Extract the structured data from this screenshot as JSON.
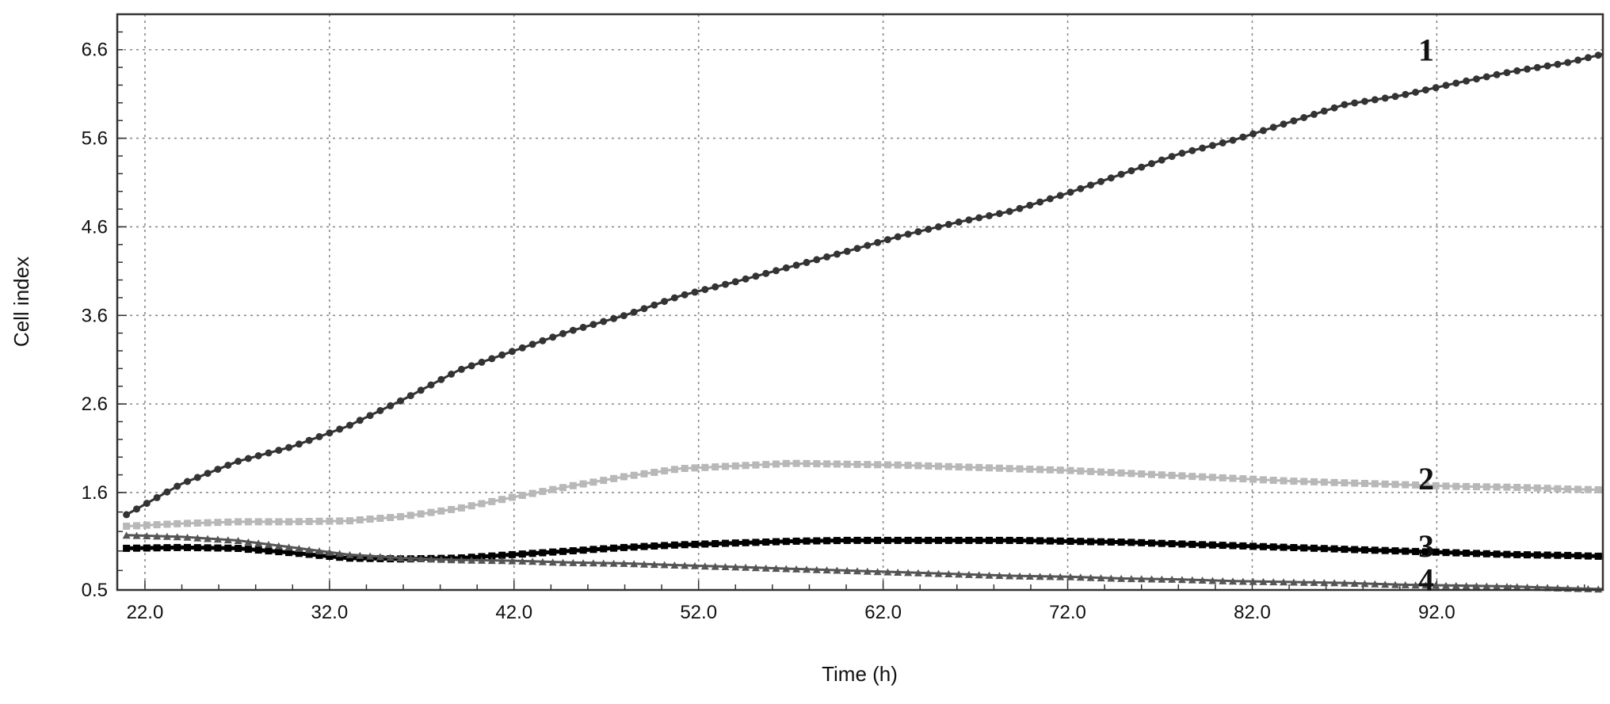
{
  "chart_data": {
    "type": "line",
    "title": "",
    "xlabel": "Time (h)",
    "ylabel": "Cell index",
    "xlim": [
      20.5,
      101.0
    ],
    "ylim": [
      0.5,
      7.0
    ],
    "xticks": [
      22.0,
      32.0,
      42.0,
      52.0,
      62.0,
      72.0,
      82.0,
      92.0
    ],
    "xtick_labels": [
      "22.0",
      "32.0",
      "42.0",
      "52.0",
      "62.0",
      "72.0",
      "82.0",
      "92.0"
    ],
    "yticks": [
      0.5,
      1.6,
      2.6,
      3.6,
      4.6,
      5.6,
      6.6
    ],
    "ytick_labels": [
      "0.5",
      "1.6",
      "2.6",
      "3.6",
      "4.6",
      "5.6",
      "6.6"
    ],
    "grid": true,
    "legend": "none",
    "series": [
      {
        "label": "1",
        "color": "#333333",
        "marker": "circle",
        "x": [
          21,
          24,
          27,
          30,
          33,
          36,
          39,
          42,
          45,
          48,
          51,
          54,
          57,
          60,
          63,
          66,
          69,
          72,
          75,
          78,
          81,
          84,
          87,
          90,
          93,
          96,
          99,
          101
        ],
        "y": [
          1.35,
          1.7,
          1.95,
          2.12,
          2.35,
          2.65,
          2.98,
          3.2,
          3.42,
          3.6,
          3.82,
          3.98,
          4.15,
          4.32,
          4.5,
          4.65,
          4.78,
          4.98,
          5.2,
          5.42,
          5.58,
          5.78,
          5.98,
          6.08,
          6.22,
          6.35,
          6.45,
          6.55
        ]
      },
      {
        "label": "2",
        "color": "#b8b8b8",
        "marker": "square",
        "x": [
          21,
          24,
          27,
          30,
          33,
          36,
          39,
          42,
          45,
          48,
          51,
          54,
          57,
          60,
          63,
          66,
          69,
          72,
          75,
          78,
          81,
          84,
          87,
          90,
          93,
          96,
          99,
          101
        ],
        "y": [
          1.22,
          1.25,
          1.27,
          1.27,
          1.28,
          1.33,
          1.42,
          1.55,
          1.67,
          1.78,
          1.87,
          1.9,
          1.93,
          1.92,
          1.91,
          1.89,
          1.87,
          1.85,
          1.82,
          1.79,
          1.76,
          1.73,
          1.71,
          1.69,
          1.67,
          1.66,
          1.64,
          1.63
        ]
      },
      {
        "label": "3",
        "color": "#000000",
        "marker": "square",
        "x": [
          21,
          24,
          27,
          30,
          33,
          36,
          39,
          42,
          45,
          48,
          51,
          54,
          57,
          60,
          63,
          66,
          69,
          72,
          75,
          78,
          81,
          84,
          87,
          90,
          93,
          96,
          99,
          101
        ],
        "y": [
          0.97,
          0.98,
          0.97,
          0.92,
          0.86,
          0.85,
          0.86,
          0.9,
          0.94,
          0.98,
          1.01,
          1.03,
          1.05,
          1.06,
          1.06,
          1.06,
          1.06,
          1.05,
          1.04,
          1.02,
          1.0,
          0.98,
          0.96,
          0.94,
          0.92,
          0.9,
          0.89,
          0.88
        ]
      },
      {
        "label": "4",
        "color": "#555555",
        "marker": "triangle",
        "x": [
          21,
          24,
          27,
          30,
          33,
          36,
          39,
          42,
          45,
          48,
          51,
          54,
          57,
          60,
          63,
          66,
          69,
          72,
          75,
          78,
          81,
          84,
          87,
          90,
          93,
          96,
          99,
          101
        ],
        "y": [
          1.12,
          1.1,
          1.06,
          0.98,
          0.9,
          0.86,
          0.84,
          0.83,
          0.81,
          0.8,
          0.78,
          0.76,
          0.74,
          0.72,
          0.7,
          0.68,
          0.66,
          0.65,
          0.63,
          0.62,
          0.6,
          0.59,
          0.58,
          0.56,
          0.55,
          0.54,
          0.52,
          0.51
        ]
      }
    ]
  }
}
